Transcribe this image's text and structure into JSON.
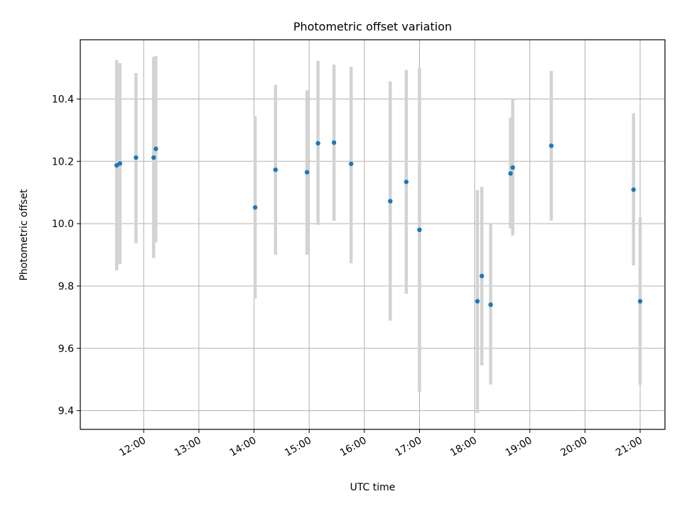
{
  "chart_data": {
    "type": "scatter",
    "title": "Photometric offset variation",
    "xlabel": "UTC time",
    "ylabel": "Photometric offset",
    "x_unit": "hours UTC",
    "xlim": [
      10.85,
      21.45
    ],
    "ylim": [
      9.34,
      10.59
    ],
    "x_ticks": [
      {
        "value": 12,
        "label": "12:00"
      },
      {
        "value": 13,
        "label": "13:00"
      },
      {
        "value": 14,
        "label": "14:00"
      },
      {
        "value": 15,
        "label": "15:00"
      },
      {
        "value": 16,
        "label": "16:00"
      },
      {
        "value": 17,
        "label": "17:00"
      },
      {
        "value": 18,
        "label": "18:00"
      },
      {
        "value": 19,
        "label": "19:00"
      },
      {
        "value": 20,
        "label": "20:00"
      },
      {
        "value": 21,
        "label": "21:00"
      }
    ],
    "y_ticks": [
      {
        "value": 9.4,
        "label": "9.4"
      },
      {
        "value": 9.6,
        "label": "9.6"
      },
      {
        "value": 9.8,
        "label": "9.8"
      },
      {
        "value": 10.0,
        "label": "10.0"
      },
      {
        "value": 10.2,
        "label": "10.2"
      },
      {
        "value": 10.4,
        "label": "10.4"
      }
    ],
    "grid": true,
    "marker_color": "#1f77b4",
    "errorbar_color": "#d3d3d3",
    "points": [
      {
        "x": 11.51,
        "y": 10.187,
        "ymin": 9.85,
        "ymax": 10.525
      },
      {
        "x": 11.57,
        "y": 10.193,
        "ymin": 9.87,
        "ymax": 10.515
      },
      {
        "x": 11.86,
        "y": 10.212,
        "ymin": 9.937,
        "ymax": 10.483
      },
      {
        "x": 12.18,
        "y": 10.212,
        "ymin": 9.89,
        "ymax": 10.535
      },
      {
        "x": 12.22,
        "y": 10.24,
        "ymin": 9.94,
        "ymax": 10.538
      },
      {
        "x": 14.02,
        "y": 10.052,
        "ymin": 9.76,
        "ymax": 10.345
      },
      {
        "x": 14.39,
        "y": 10.173,
        "ymin": 9.9,
        "ymax": 10.445
      },
      {
        "x": 14.96,
        "y": 10.165,
        "ymin": 9.9,
        "ymax": 10.428
      },
      {
        "x": 15.16,
        "y": 10.258,
        "ymin": 9.996,
        "ymax": 10.522
      },
      {
        "x": 15.45,
        "y": 10.26,
        "ymin": 10.009,
        "ymax": 10.51
      },
      {
        "x": 15.76,
        "y": 10.192,
        "ymin": 9.873,
        "ymax": 10.503
      },
      {
        "x": 16.47,
        "y": 10.072,
        "ymin": 9.689,
        "ymax": 10.456
      },
      {
        "x": 16.76,
        "y": 10.134,
        "ymin": 9.775,
        "ymax": 10.493
      },
      {
        "x": 17.0,
        "y": 9.98,
        "ymin": 9.46,
        "ymax": 10.5
      },
      {
        "x": 18.05,
        "y": 9.751,
        "ymin": 9.393,
        "ymax": 10.107
      },
      {
        "x": 18.13,
        "y": 9.832,
        "ymin": 9.545,
        "ymax": 10.118
      },
      {
        "x": 18.29,
        "y": 9.74,
        "ymin": 9.484,
        "ymax": 10.0
      },
      {
        "x": 18.65,
        "y": 10.161,
        "ymin": 9.985,
        "ymax": 10.34
      },
      {
        "x": 18.69,
        "y": 10.18,
        "ymin": 9.962,
        "ymax": 10.4
      },
      {
        "x": 19.39,
        "y": 10.25,
        "ymin": 10.01,
        "ymax": 10.49
      },
      {
        "x": 20.88,
        "y": 10.109,
        "ymin": 9.866,
        "ymax": 10.354
      },
      {
        "x": 21.0,
        "y": 9.751,
        "ymin": 9.483,
        "ymax": 10.02
      }
    ]
  }
}
